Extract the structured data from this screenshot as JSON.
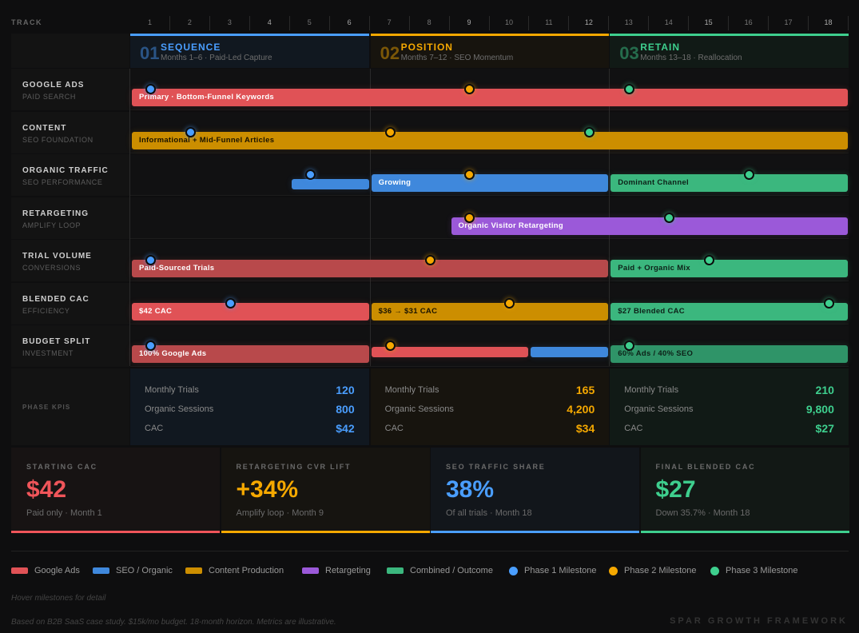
{
  "header": {
    "track_label": "TRACK",
    "months": [
      "1",
      "2",
      "3",
      "4",
      "5",
      "6",
      "7",
      "8",
      "9",
      "10",
      "11",
      "12",
      "13",
      "14",
      "15",
      "16",
      "17",
      "18"
    ]
  },
  "colors": {
    "phase1": "#4a9eff",
    "phase2": "#f5a800",
    "phase3": "#3ecf8e"
  },
  "phases": [
    {
      "num": "01",
      "name": "SEQUENCE",
      "sub": "Months 1–6 · Paid-Led Capture",
      "color": "#4a9eff",
      "bg": "#111820"
    },
    {
      "num": "02",
      "name": "POSITION",
      "sub": "Months 7–12 · SEO Momentum",
      "color": "#f5a800",
      "bg": "#17140e"
    },
    {
      "num": "03",
      "name": "RETAIN",
      "sub": "Months 13–18 · Reallocation",
      "color": "#3ecf8e",
      "bg": "#111a16"
    }
  ],
  "rows": [
    {
      "title": "GOOGLE ADS",
      "sub": "PAID SEARCH",
      "bars": [
        {
          "start": 0,
          "end": 18,
          "label": "Primary · Bottom-Funnel Keywords",
          "color": "#e05256",
          "text": "#fff"
        }
      ],
      "milestones": [
        {
          "month": 0.5,
          "phase": 1
        },
        {
          "month": 8.5,
          "phase": 2
        },
        {
          "month": 12.5,
          "phase": 3
        }
      ]
    },
    {
      "title": "CONTENT",
      "sub": "SEO FOUNDATION",
      "bars": [
        {
          "start": 0,
          "end": 18,
          "label": "Informational + Mid-Funnel Articles",
          "color": "#cc8e00",
          "text": "#1a1300"
        }
      ],
      "milestones": [
        {
          "month": 1.5,
          "phase": 1
        },
        {
          "month": 6.5,
          "phase": 2
        },
        {
          "month": 11.5,
          "phase": 3
        }
      ]
    },
    {
      "title": "ORGANIC TRAFFIC",
      "sub": "SEO PERFORMANCE",
      "bars": [
        {
          "start": 4,
          "end": 6,
          "label": "",
          "color": "#3f88dc",
          "text": "#fff",
          "variant": "thin"
        },
        {
          "start": 6,
          "end": 12,
          "label": "Growing",
          "color": "#3f88dc",
          "text": "#fff"
        },
        {
          "start": 12,
          "end": 18,
          "label": "Dominant Channel",
          "color": "#3bb77e",
          "text": "#0d2118"
        }
      ],
      "milestones": [
        {
          "month": 4.5,
          "phase": 1
        },
        {
          "month": 8.5,
          "phase": 2
        },
        {
          "month": 15.5,
          "phase": 3
        }
      ]
    },
    {
      "title": "RETARGETING",
      "sub": "AMPLIFY LOOP",
      "bars": [
        {
          "start": 8,
          "end": 18,
          "label": "Organic Visitor Retargeting",
          "color": "#9b59d9",
          "text": "#fff"
        }
      ],
      "milestones": [
        {
          "month": 8.5,
          "phase": 2
        },
        {
          "month": 13.5,
          "phase": 3
        }
      ]
    },
    {
      "title": "TRIAL VOLUME",
      "sub": "CONVERSIONS",
      "bars": [
        {
          "start": 0,
          "end": 12,
          "label": "Paid-Sourced Trials",
          "color": "#b8494b",
          "text": "#fff"
        },
        {
          "start": 12,
          "end": 18,
          "label": "Paid + Organic Mix",
          "color": "#3bb77e",
          "text": "#0d2118"
        }
      ],
      "milestones": [
        {
          "month": 0.5,
          "phase": 1
        },
        {
          "month": 7.5,
          "phase": 2
        },
        {
          "month": 14.5,
          "phase": 3
        }
      ]
    },
    {
      "title": "BLENDED CAC",
      "sub": "EFFICIENCY",
      "bars": [
        {
          "start": 0,
          "end": 6,
          "label": "$42 CAC",
          "color": "#e05256",
          "text": "#fff"
        },
        {
          "start": 6,
          "end": 12,
          "label": "$36 → $31 CAC",
          "color": "#cc8e00",
          "text": "#1a1300"
        },
        {
          "start": 12,
          "end": 18,
          "label": "$27 Blended CAC",
          "color": "#3bb77e",
          "text": "#0d2118"
        }
      ],
      "milestones": [
        {
          "month": 2.5,
          "phase": 1
        },
        {
          "month": 9.5,
          "phase": 2
        },
        {
          "month": 17.5,
          "phase": 3
        }
      ]
    },
    {
      "title": "BUDGET SPLIT",
      "sub": "INVESTMENT",
      "bars": [
        {
          "start": 0,
          "end": 6,
          "label": "100% Google Ads",
          "color": "#b8494b",
          "text": "#fff"
        },
        {
          "start": 6,
          "end": 10,
          "label": "",
          "color": "#e05256",
          "text": "#fff",
          "variant": "thin"
        },
        {
          "start": 10,
          "end": 12,
          "label": "",
          "color": "#3f88dc",
          "text": "#fff",
          "variant": "thin"
        },
        {
          "start": 12,
          "end": 18,
          "label": "60% Ads / 40% SEO",
          "color": "#2f9468",
          "text": "#0d2118"
        }
      ],
      "milestones": [
        {
          "month": 0.5,
          "phase": 1
        },
        {
          "month": 6.5,
          "phase": 2
        },
        {
          "month": 12.5,
          "phase": 3
        }
      ]
    }
  ],
  "kpis": {
    "label": "PHASE KPIS",
    "phases": [
      {
        "color": "#4a9eff",
        "items": [
          {
            "k": "Monthly Trials",
            "v": "120"
          },
          {
            "k": "Organic Sessions",
            "v": "800"
          },
          {
            "k": "CAC",
            "v": "$42"
          }
        ]
      },
      {
        "color": "#f5a800",
        "items": [
          {
            "k": "Monthly Trials",
            "v": "165"
          },
          {
            "k": "Organic Sessions",
            "v": "4,200"
          },
          {
            "k": "CAC",
            "v": "$34"
          }
        ]
      },
      {
        "color": "#3ecf8e",
        "items": [
          {
            "k": "Monthly Trials",
            "v": "210"
          },
          {
            "k": "Organic Sessions",
            "v": "9,800"
          },
          {
            "k": "CAC",
            "v": "$27"
          }
        ]
      }
    ]
  },
  "cards": [
    {
      "label": "STARTING CAC",
      "value": "$42",
      "sub": "Paid only · Month 1",
      "color": "#f0555a",
      "bg": "#171313"
    },
    {
      "label": "RETARGETING CVR LIFT",
      "value": "+34%",
      "sub": "Amplify loop · Month 9",
      "color": "#f5a800",
      "bg": "#161410"
    },
    {
      "label": "SEO TRAFFIC SHARE",
      "value": "38%",
      "sub": "Of all trials · Month 18",
      "color": "#4a9eff",
      "bg": "#12161b"
    },
    {
      "label": "FINAL BLENDED CAC",
      "value": "$27",
      "sub": "Down 35.7% · Month 18",
      "color": "#3ecf8e",
      "bg": "#121815"
    }
  ],
  "legend": [
    {
      "label": "Google Ads",
      "color": "#e05256",
      "shape": "swatch"
    },
    {
      "label": "SEO / Organic",
      "color": "#3f88dc",
      "shape": "swatch"
    },
    {
      "label": "Content Production",
      "color": "#cc8e00",
      "shape": "swatch"
    },
    {
      "label": "Retargeting",
      "color": "#9b59d9",
      "shape": "swatch"
    },
    {
      "label": "Combined / Outcome",
      "color": "#3bb77e",
      "shape": "swatch"
    },
    {
      "label": "Phase 1 Milestone",
      "color": "#4a9eff",
      "shape": "dot"
    },
    {
      "label": "Phase 2 Milestone",
      "color": "#f5a800",
      "shape": "dot"
    },
    {
      "label": "Phase 3 Milestone",
      "color": "#3ecf8e",
      "shape": "dot"
    }
  ],
  "footer": {
    "hint": "Hover milestones for detail",
    "note": "Based on B2B SaaS case study. $15k/mo budget. 18-month horizon. Metrics are illustrative.",
    "brand": "SPAR GROWTH FRAMEWORK"
  }
}
